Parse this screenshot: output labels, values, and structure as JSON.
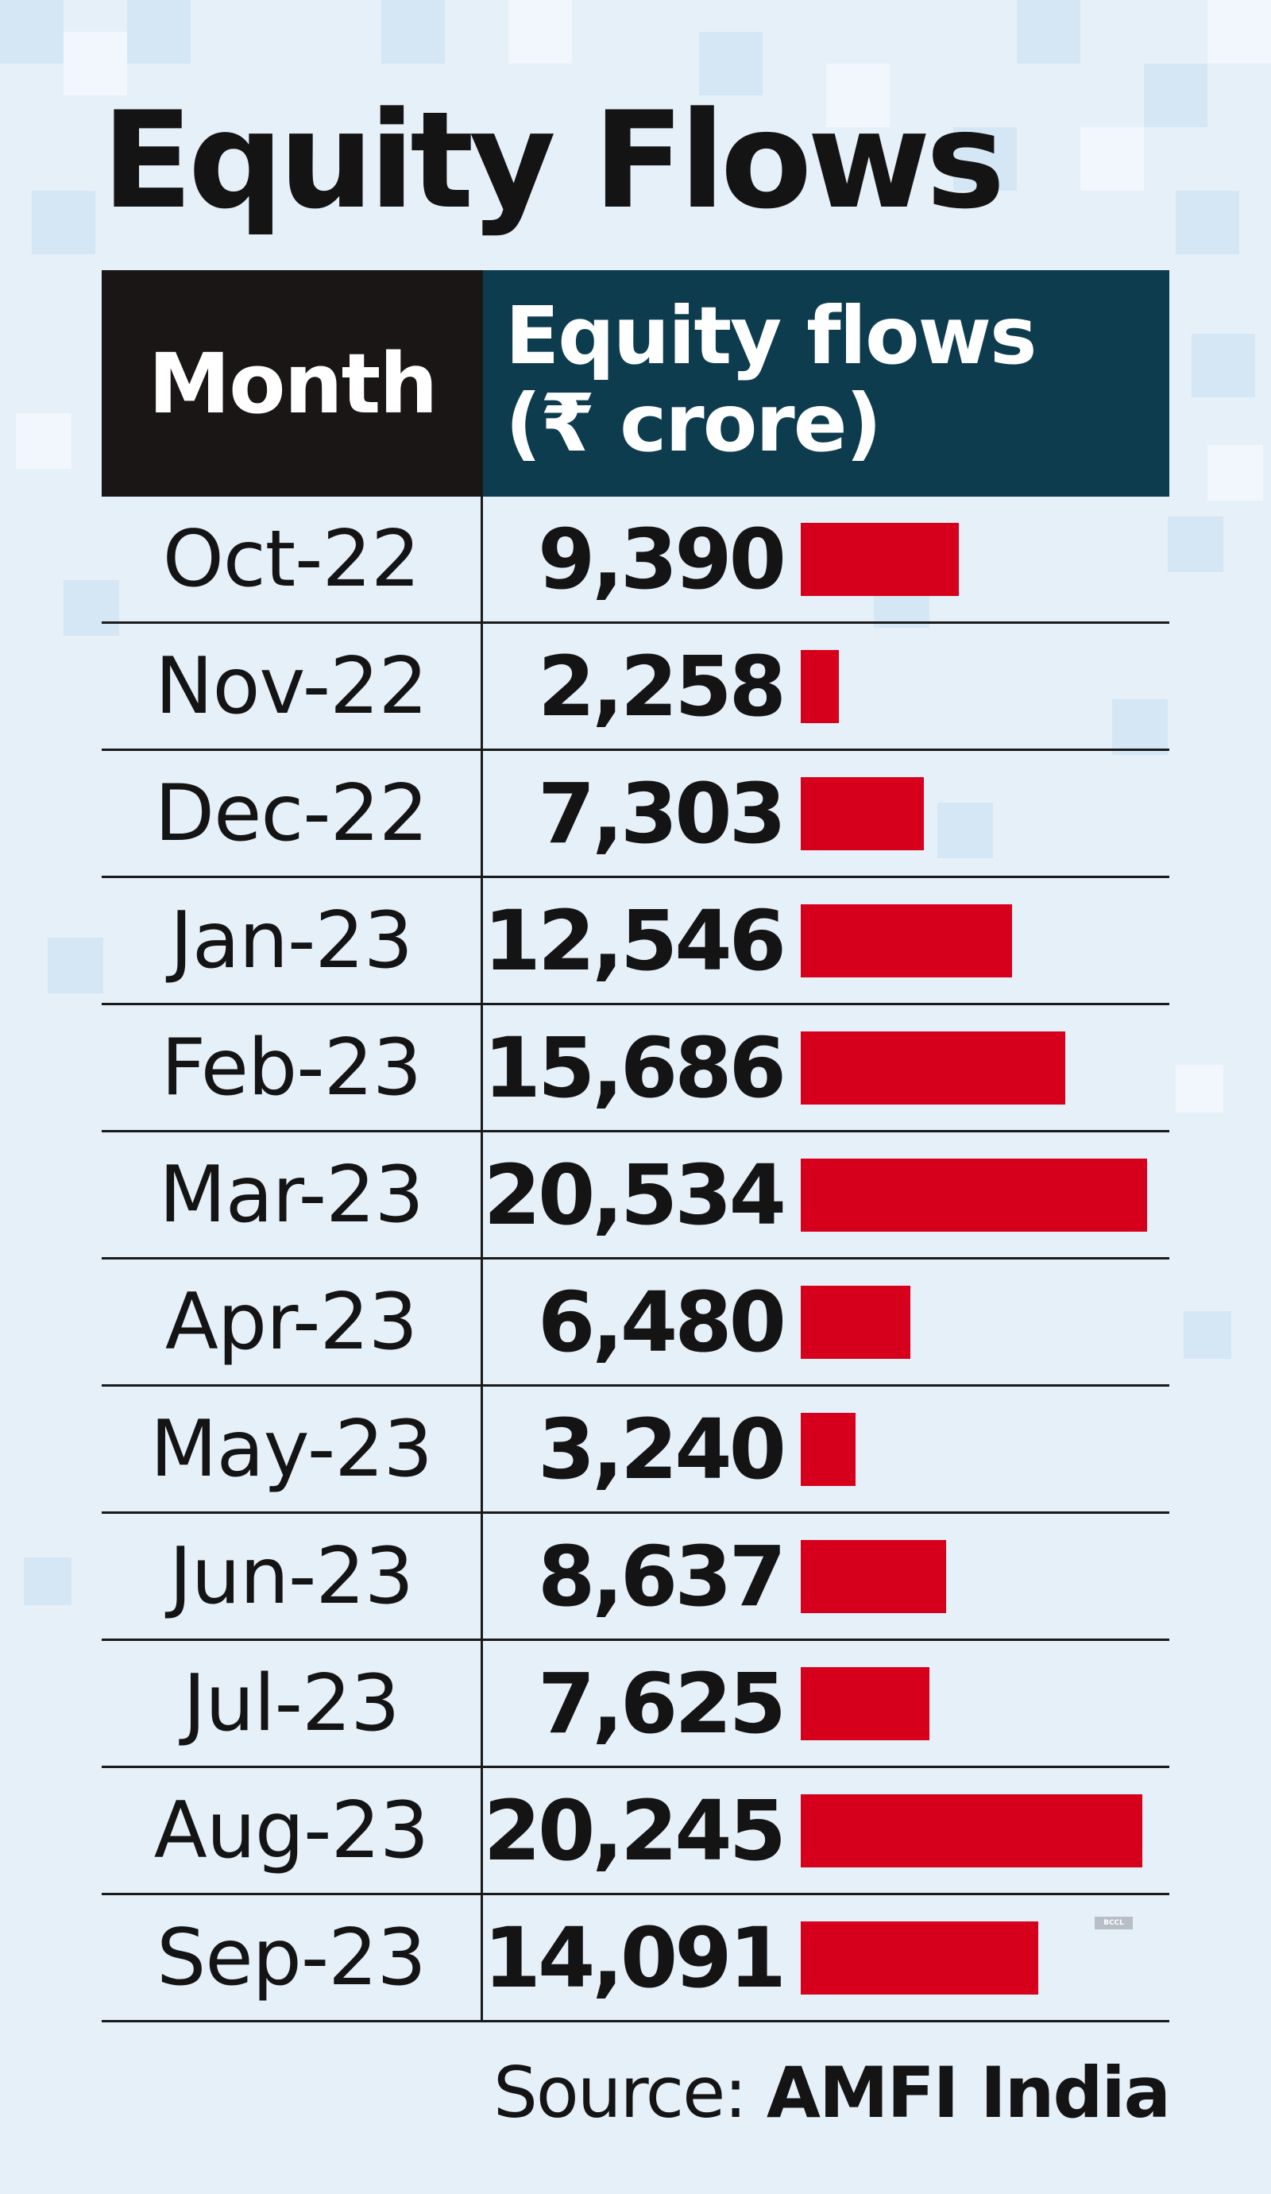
{
  "title": "Equity Flows",
  "chart_data": {
    "type": "bar",
    "orientation": "horizontal",
    "title": "Equity Flows",
    "columns": [
      "Month",
      "Equity flows (₹ crore)"
    ],
    "column_header_lines": [
      "Equity  flows",
      "(₹ crore)"
    ],
    "categories": [
      "Oct-22",
      "Nov-22",
      "Dec-22",
      "Jan-23",
      "Feb-23",
      "Mar-23",
      "Apr-23",
      "May-23",
      "Jun-23",
      "Jul-23",
      "Aug-23",
      "Sep-23"
    ],
    "labels": [
      "9,390",
      "2,258",
      "7,303",
      "12,546",
      "15,686",
      "20,534",
      "6,480",
      "3,240",
      "8,637",
      "7,625",
      "20,245",
      "14,091"
    ],
    "values": [
      9390,
      2258,
      7303,
      12546,
      15686,
      20534,
      6480,
      3240,
      8637,
      7625,
      20245,
      14091
    ],
    "xlim": [
      0,
      20534
    ],
    "bar_color": "#d6001c"
  },
  "source": {
    "prefix": "Source: ",
    "name": "AMFI India"
  },
  "watermark": "BCCL",
  "colors": {
    "background": "#e6f0f9",
    "month_header": "#1a1615",
    "flows_header": "#0e3c4f",
    "bar": "#d6001c"
  }
}
